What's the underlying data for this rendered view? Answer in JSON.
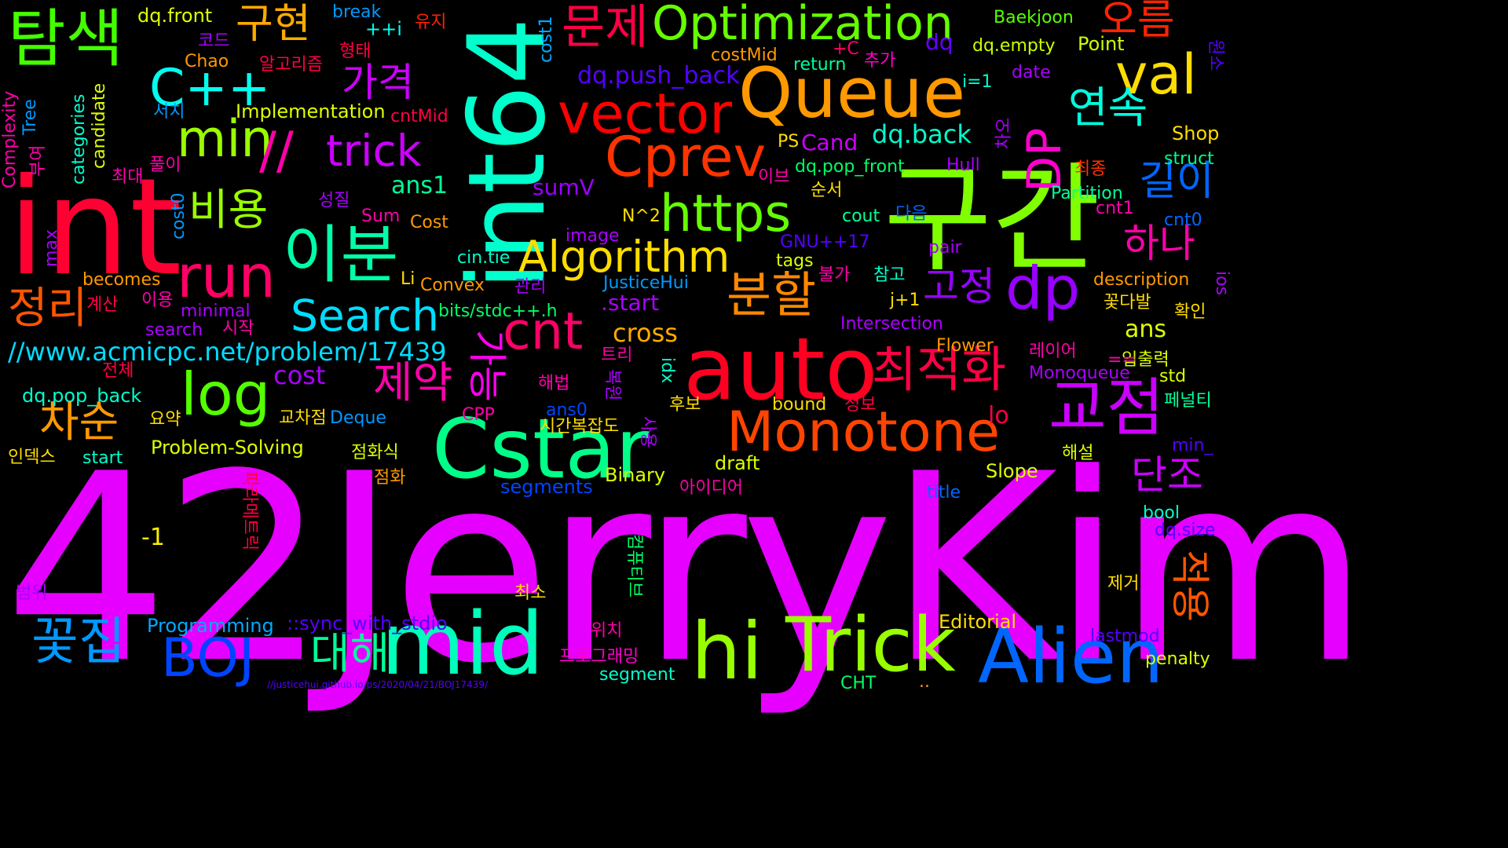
{
  "word_cloud": {
    "words": [
      {
        "id": "w001",
        "text": "42JerryKim",
        "color": "#e600ff"
      },
      {
        "id": "w002",
        "text": "구간",
        "color": "#80ff00"
      },
      {
        "id": "w003",
        "text": "int64",
        "color": "#00ffcc"
      },
      {
        "id": "w004",
        "text": "int",
        "color": "#ff0033"
      },
      {
        "id": "w005",
        "text": "auto",
        "color": "#ff0022"
      },
      {
        "id": "w006",
        "text": "Cstar",
        "color": "#00ff88"
      },
      {
        "id": "w007",
        "text": "Queue",
        "color": "#ff9900"
      },
      {
        "id": "w008",
        "text": "mid",
        "color": "#00ffbb"
      },
      {
        "id": "w009",
        "text": "hi",
        "color": "#99ff00"
      },
      {
        "id": "w010",
        "text": "Trick",
        "color": "#99ff00"
      },
      {
        "id": "w011",
        "text": "Alien",
        "color": "#0066ff"
      },
      {
        "id": "w012",
        "text": "Monotone",
        "color": "#ff4400"
      },
      {
        "id": "w013",
        "text": "교점",
        "color": "#cc00ff"
      },
      {
        "id": "w014",
        "text": "탐색",
        "color": "#44ff00"
      },
      {
        "id": "w015",
        "text": "이분",
        "color": "#00ffaa"
      },
      {
        "id": "w016",
        "text": "run",
        "color": "#ff0066"
      },
      {
        "id": "w017",
        "text": "vector",
        "color": "#ff0000"
      },
      {
        "id": "w018",
        "text": "Cprev",
        "color": "#ff3300"
      },
      {
        "id": "w019",
        "text": "Optimization",
        "color": "#66ff00"
      },
      {
        "id": "w020",
        "text": "https",
        "color": "#66ff00"
      },
      {
        "id": "w021",
        "text": "Algorithm",
        "color": "#ffdd00"
      },
      {
        "id": "w022",
        "text": "Search",
        "color": "#00ddff"
      },
      {
        "id": "w023",
        "text": "log",
        "color": "#55ff00"
      },
      {
        "id": "w024",
        "text": "dp",
        "color": "#9900ff"
      },
      {
        "id": "w025",
        "text": "val",
        "color": "#ffdd00"
      },
      {
        "id": "w026",
        "text": "min",
        "color": "#99ff00"
      },
      {
        "id": "w027",
        "text": "C++",
        "color": "#00ffee"
      },
      {
        "id": "w028",
        "text": "cnt",
        "color": "#ff0066"
      },
      {
        "id": "w029",
        "text": "BOJ",
        "color": "#0044ff"
      },
      {
        "id": "w030",
        "text": "꽃집",
        "color": "#0099ff"
      },
      {
        "id": "w031",
        "text": "문제",
        "color": "#ff0044"
      },
      {
        "id": "w032",
        "text": "최적화",
        "color": "#ff0044"
      },
      {
        "id": "w033",
        "text": "분할",
        "color": "#ff8800"
      },
      {
        "id": "w034",
        "text": "대해",
        "color": "#00ff99"
      },
      {
        "id": "w035",
        "text": "trick",
        "color": "#cc00ff"
      },
      {
        "id": "w036",
        "text": "DP",
        "color": "#ff00cc"
      },
      {
        "id": "w037",
        "text": "연속",
        "color": "#00ffdd"
      },
      {
        "id": "w038",
        "text": "길이",
        "color": "#0066ff"
      },
      {
        "id": "w039",
        "text": "하나",
        "color": "#ff00aa"
      },
      {
        "id": "w040",
        "text": "제약",
        "color": "#ff00aa"
      },
      {
        "id": "w041",
        "text": "정리",
        "color": "#ff5500"
      },
      {
        "id": "w042",
        "text": "차순",
        "color": "#ff9900"
      },
      {
        "id": "w043",
        "text": "비용",
        "color": "#99ff00"
      },
      {
        "id": "w044",
        "text": "가격",
        "color": "#cc00ff"
      },
      {
        "id": "w045",
        "text": "구현",
        "color": "#ffaa00"
      },
      {
        "id": "w046",
        "text": "오름",
        "color": "#ff2200"
      },
      {
        "id": "w047",
        "text": "고정",
        "color": "#9900ff"
      },
      {
        "id": "w048",
        "text": "단조",
        "color": "#cc00ff"
      },
      {
        "id": "w049",
        "text": "//",
        "color": "#ff00aa"
      },
      {
        "id": "w050",
        "text": "적용",
        "color": "#ff5500"
      },
      {
        "id": "w051",
        "text": "가능",
        "color": "#ff00ee"
      },
      {
        "id": "w052",
        "text": "//www.acmicpc.net/problem/17439",
        "color": "#00ddff"
      },
      {
        "id": "w053",
        "text": "dq.push_back",
        "color": "#5500ff"
      },
      {
        "id": "w054",
        "text": "dq.back",
        "color": "#00ffcc"
      },
      {
        "id": "w055",
        "text": "Cand",
        "color": "#cc00ff"
      },
      {
        "id": "w056",
        "text": "ans1",
        "color": "#00ff99"
      },
      {
        "id": "w057",
        "text": "sumV",
        "color": "#9900ff"
      },
      {
        "id": "w058",
        "text": "cross",
        "color": "#ffaa00"
      },
      {
        "id": "w059",
        "text": "cost",
        "color": "#aa00ff"
      },
      {
        "id": "w060",
        "text": "ans",
        "color": "#ddff00"
      },
      {
        "id": "w061",
        "text": "lo",
        "color": "#ff0044"
      },
      {
        "id": "w062",
        "text": "-1",
        "color": "#ffee00"
      },
      {
        "id": "w063",
        "text": ".start",
        "color": "#aa00ff"
      },
      {
        "id": "w064",
        "text": "Implementation",
        "color": "#ddff00"
      },
      {
        "id": "w065",
        "text": "dq.front",
        "color": "#ddff00"
      },
      {
        "id": "w066",
        "text": "break",
        "color": "#0099ff"
      },
      {
        "id": "w067",
        "text": "++i",
        "color": "#00ffee"
      },
      {
        "id": "w068",
        "text": "유지",
        "color": "#ff2200"
      },
      {
        "id": "w069",
        "text": "cost1",
        "color": "#00aaff"
      },
      {
        "id": "w070",
        "text": "costMid",
        "color": "#ff9900"
      },
      {
        "id": "w071",
        "text": "+C",
        "color": "#ff0066"
      },
      {
        "id": "w072",
        "text": "추가",
        "color": "#ff00cc"
      },
      {
        "id": "w073",
        "text": "dq",
        "color": "#6600ff"
      },
      {
        "id": "w074",
        "text": "dq.empty",
        "color": "#ccff00"
      },
      {
        "id": "w075",
        "text": "Point",
        "color": "#ccff00"
      },
      {
        "id": "w076",
        "text": "Baekjoon",
        "color": "#55ff00"
      },
      {
        "id": "w077",
        "text": "원소",
        "color": "#5500ff"
      },
      {
        "id": "w078",
        "text": "return",
        "color": "#00ff99"
      },
      {
        "id": "w079",
        "text": "date",
        "color": "#aa00ff"
      },
      {
        "id": "w080",
        "text": "i=1",
        "color": "#00ffcc"
      },
      {
        "id": "w081",
        "text": "Shop",
        "color": "#ffdd00"
      },
      {
        "id": "w082",
        "text": "struct",
        "color": "#00ff88"
      },
      {
        "id": "w083",
        "text": "차오",
        "color": "#aa00ff"
      },
      {
        "id": "w084",
        "text": "PS",
        "color": "#ffdd00"
      },
      {
        "id": "w085",
        "text": "dq.pop_front",
        "color": "#00ff66"
      },
      {
        "id": "w086",
        "text": "Hull",
        "color": "#aa00ff"
      },
      {
        "id": "w087",
        "text": "최종",
        "color": "#ff3300"
      },
      {
        "id": "w088",
        "text": "이브",
        "color": "#ff00aa"
      },
      {
        "id": "w089",
        "text": "순서",
        "color": "#ffdd00"
      },
      {
        "id": "w090",
        "text": "Partition",
        "color": "#00ff99"
      },
      {
        "id": "w091",
        "text": "cnt1",
        "color": "#ff00aa"
      },
      {
        "id": "w092",
        "text": "cnt0",
        "color": "#0066ff"
      },
      {
        "id": "w093",
        "text": "cout",
        "color": "#00ff99"
      },
      {
        "id": "w094",
        "text": "다음",
        "color": "#0066ff"
      },
      {
        "id": "w095",
        "text": "GNU++17",
        "color": "#5500ff"
      },
      {
        "id": "w096",
        "text": "tags",
        "color": "#ddff00"
      },
      {
        "id": "w097",
        "text": "pair",
        "color": "#aa00ff"
      },
      {
        "id": "w098",
        "text": "N^2",
        "color": "#ffdd00"
      },
      {
        "id": "w099",
        "text": "image",
        "color": "#aa00ff"
      },
      {
        "id": "w100",
        "text": "Cost",
        "color": "#ff9900"
      },
      {
        "id": "w101",
        "text": "Sum",
        "color": "#ff00aa"
      },
      {
        "id": "w102",
        "text": "성질",
        "color": "#aa00ff"
      },
      {
        "id": "w103",
        "text": "cin.tie",
        "color": "#00ffcc"
      },
      {
        "id": "w104",
        "text": "JusticeHui",
        "color": "#0099ff"
      },
      {
        "id": "w105",
        "text": "불가",
        "color": "#ff00aa"
      },
      {
        "id": "w106",
        "text": "참고",
        "color": "#00ffcc"
      },
      {
        "id": "w107",
        "text": "description",
        "color": "#ff9900"
      },
      {
        "id": "w108",
        "text": "Convex",
        "color": "#ff9900"
      },
      {
        "id": "w109",
        "text": "관리",
        "color": "#aa00ff"
      },
      {
        "id": "w110",
        "text": "Li",
        "color": "#ffdd00"
      },
      {
        "id": "w111",
        "text": "becomes",
        "color": "#ff9900"
      },
      {
        "id": "w112",
        "text": "minimal",
        "color": "#aa00ff"
      },
      {
        "id": "w113",
        "text": "search",
        "color": "#aa00ff"
      },
      {
        "id": "w114",
        "text": "이용",
        "color": "#ff00aa"
      },
      {
        "id": "w115",
        "text": "시작",
        "color": "#ff00aa"
      },
      {
        "id": "w116",
        "text": "계산",
        "color": "#ff0044"
      },
      {
        "id": "w117",
        "text": "bits/stdc++.h",
        "color": "#00ff66"
      },
      {
        "id": "w118",
        "text": "j+1",
        "color": "#ffdd00"
      },
      {
        "id": "w119",
        "text": "Intersection",
        "color": "#aa00ff"
      },
      {
        "id": "w120",
        "text": "꽃다발",
        "color": "#ffdd00"
      },
      {
        "id": "w121",
        "text": "확인",
        "color": "#ffdd00"
      },
      {
        "id": "w122",
        "text": "Flower",
        "color": "#ff9900"
      },
      {
        "id": "w123",
        "text": "레이어",
        "color": "#ff00aa"
      },
      {
        "id": "w124",
        "text": "입출력",
        "color": "#ddff00"
      },
      {
        "id": "w125",
        "text": "==",
        "color": "#ff00aa"
      },
      {
        "id": "w126",
        "text": "Monoqueue",
        "color": "#aa00ff"
      },
      {
        "id": "w127",
        "text": "std",
        "color": "#ddff00"
      },
      {
        "id": "w128",
        "text": "트리",
        "color": "#ff00aa"
      },
      {
        "id": "w129",
        "text": "idx",
        "color": "#00ffcc"
      },
      {
        "id": "w130",
        "text": "전체",
        "color": "#ff0044"
      },
      {
        "id": "w131",
        "text": "해법",
        "color": "#ff00aa"
      },
      {
        "id": "w132",
        "text": "복원",
        "color": "#aa00ff"
      },
      {
        "id": "w133",
        "text": "후보",
        "color": "#ffdd00"
      },
      {
        "id": "w134",
        "text": "정보",
        "color": "#ff0044"
      },
      {
        "id": "w135",
        "text": "bound",
        "color": "#ffdd00"
      },
      {
        "id": "w136",
        "text": "페널티",
        "color": "#00ff99"
      },
      {
        "id": "w137",
        "text": "dq.pop_back",
        "color": "#00ffcc"
      },
      {
        "id": "w138",
        "text": "교차점",
        "color": "#ffdd00"
      },
      {
        "id": "w139",
        "text": "Deque",
        "color": "#0099ff"
      },
      {
        "id": "w140",
        "text": "CPP",
        "color": "#ff00aa"
      },
      {
        "id": "w141",
        "text": "ans0",
        "color": "#0044ff"
      },
      {
        "id": "w142",
        "text": "요약",
        "color": "#ffdd00"
      },
      {
        "id": "w143",
        "text": "시간복잡도",
        "color": "#ffdd00"
      },
      {
        "id": "w144",
        "text": "사용",
        "color": "#aa00ff"
      },
      {
        "id": "w145",
        "text": "인덱스",
        "color": "#ffdd00"
      },
      {
        "id": "w146",
        "text": "start",
        "color": "#00ffcc"
      },
      {
        "id": "w147",
        "text": "Problem-Solving",
        "color": "#ddff00"
      },
      {
        "id": "w148",
        "text": "점화식",
        "color": "#ddff00"
      },
      {
        "id": "w149",
        "text": "점화",
        "color": "#ff9900"
      },
      {
        "id": "w150",
        "text": "파라메트릭",
        "color": "#ff0044"
      },
      {
        "id": "w151",
        "text": "draft",
        "color": "#ddff00"
      },
      {
        "id": "w152",
        "text": "Binary",
        "color": "#ddff00"
      },
      {
        "id": "w153",
        "text": "segments",
        "color": "#0044ff"
      },
      {
        "id": "w154",
        "text": "아이디어",
        "color": "#ff00aa"
      },
      {
        "id": "w155",
        "text": "Slope",
        "color": "#ddff00"
      },
      {
        "id": "w156",
        "text": "해설",
        "color": "#ddff00"
      },
      {
        "id": "w157",
        "text": "min_",
        "color": "#5500ff"
      },
      {
        "id": "w158",
        "text": "title",
        "color": "#0066ff"
      },
      {
        "id": "w159",
        "text": "bool",
        "color": "#00ffcc"
      },
      {
        "id": "w160",
        "text": "dq.size",
        "color": "#5500ff"
      },
      {
        "id": "w161",
        "text": "컴퓨티브",
        "color": "#00ff66"
      },
      {
        "id": "w162",
        "text": "범위",
        "color": "#aa00ff"
      },
      {
        "id": "w163",
        "text": "최소",
        "color": "#ffdd00"
      },
      {
        "id": "w164",
        "text": "제거",
        "color": "#ffdd00"
      },
      {
        "id": "w165",
        "text": "Programming",
        "color": "#00aaff"
      },
      {
        "id": "w166",
        "text": "::sync_with_stdio",
        "color": "#5500ff"
      },
      {
        "id": "w167",
        "text": "위치",
        "color": "#ff00aa"
      },
      {
        "id": "w168",
        "text": "Editorial",
        "color": "#ffdd00"
      },
      {
        "id": "w169",
        "text": "lastmod",
        "color": "#5500ff"
      },
      {
        "id": "w170",
        "text": "프로그래밍",
        "color": "#ff00cc"
      },
      {
        "id": "w171",
        "text": "segment",
        "color": "#00ffcc"
      },
      {
        "id": "w172",
        "text": "penalty",
        "color": "#ddff00"
      },
      {
        "id": "w173",
        "text": "//justicehui.github.io/ps/2020/04/21/BOJ17439/",
        "color": "#5500ff"
      },
      {
        "id": "w174",
        "text": "CHT",
        "color": "#00ff66"
      },
      {
        "id": "w175",
        "text": "..",
        "color": "#ff9900"
      },
      {
        "id": "w176",
        "text": "Complexity",
        "color": "#ff00aa"
      },
      {
        "id": "w177",
        "text": "Tree",
        "color": "#0099ff"
      },
      {
        "id": "w178",
        "text": "categories",
        "color": "#00ffcc"
      },
      {
        "id": "w179",
        "text": "candidate",
        "color": "#ddff00"
      },
      {
        "id": "w180",
        "text": "부여",
        "color": "#ff00aa"
      },
      {
        "id": "w181",
        "text": "서치",
        "color": "#0099ff"
      },
      {
        "id": "w182",
        "text": "풀이",
        "color": "#ff00aa"
      },
      {
        "id": "w183",
        "text": "최대",
        "color": "#ff00aa"
      },
      {
        "id": "w184",
        "text": "cost0",
        "color": "#0099ff"
      },
      {
        "id": "w185",
        "text": "max",
        "color": "#aa00ff"
      },
      {
        "id": "w186",
        "text": "코드",
        "color": "#aa00ff"
      },
      {
        "id": "w187",
        "text": "Chao",
        "color": "#ff9900"
      },
      {
        "id": "w188",
        "text": "알고리즘",
        "color": "#ff0044"
      },
      {
        "id": "w189",
        "text": "형태",
        "color": "#ff0044"
      },
      {
        "id": "w190",
        "text": "cntMid",
        "color": "#ff0044"
      },
      {
        "id": "w191",
        "text": "ios",
        "color": "#aa00ff"
      }
    ]
  }
}
